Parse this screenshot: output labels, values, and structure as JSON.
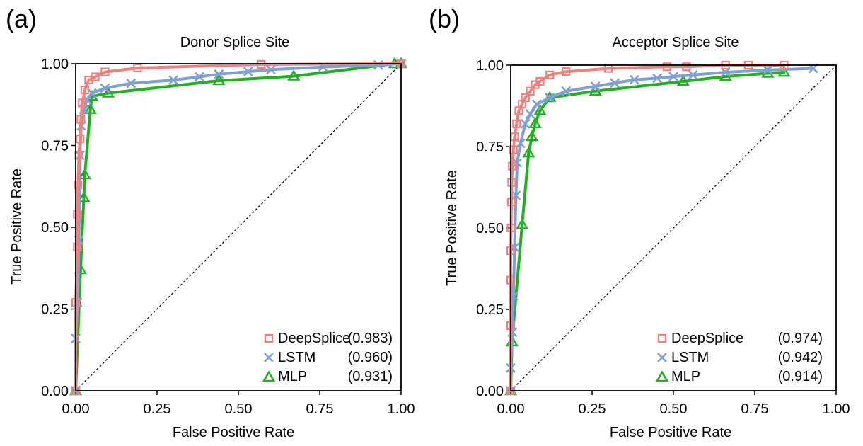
{
  "chart_data": [
    {
      "type": "line",
      "panel_label": "(a)",
      "title": "Donor Splice Site",
      "xlabel": "False Positive Rate",
      "ylabel": "True Positive Rate",
      "xlim": [
        0,
        1
      ],
      "ylim": [
        0,
        1
      ],
      "xticks": [
        "0.00",
        "0.25",
        "0.50",
        "0.75",
        "1.00"
      ],
      "yticks": [
        "0.00",
        "0.25",
        "0.50",
        "0.75",
        "1.00"
      ],
      "grid": false,
      "legend_position": "bottom-right",
      "diagonal_reference": true,
      "series": [
        {
          "name": "DeepSplice",
          "auc": "(0.983)",
          "color": "#f08080",
          "marker": "square",
          "x": [
            0.0,
            0.0,
            0.005,
            0.005,
            0.007,
            0.01,
            0.013,
            0.016,
            0.02,
            0.028,
            0.04,
            0.06,
            0.09,
            0.19,
            0.57,
            1.0
          ],
          "y": [
            0.0,
            0.27,
            0.44,
            0.54,
            0.63,
            0.72,
            0.77,
            0.83,
            0.88,
            0.92,
            0.95,
            0.96,
            0.975,
            0.987,
            0.998,
            1.0
          ]
        },
        {
          "name": "LSTM",
          "auc": "(0.960)",
          "color": "#7f9fd6",
          "marker": "x",
          "x": [
            0.0,
            0.0,
            0.006,
            0.01,
            0.013,
            0.017,
            0.025,
            0.035,
            0.05,
            0.09,
            0.17,
            0.3,
            0.38,
            0.44,
            0.53,
            0.6,
            0.76,
            0.93,
            1.0
          ],
          "y": [
            0.0,
            0.16,
            0.27,
            0.46,
            0.72,
            0.81,
            0.86,
            0.89,
            0.91,
            0.925,
            0.94,
            0.95,
            0.96,
            0.968,
            0.976,
            0.982,
            0.99,
            0.996,
            1.0
          ]
        },
        {
          "name": "MLP",
          "auc": "(0.931)",
          "color": "#22b022",
          "marker": "triangle",
          "x": [
            0.0,
            0.015,
            0.025,
            0.028,
            0.045,
            0.05,
            0.1,
            0.44,
            0.67,
            0.98,
            1.0
          ],
          "y": [
            0.0,
            0.37,
            0.59,
            0.66,
            0.86,
            0.9,
            0.91,
            0.948,
            0.962,
            1.0,
            1.0
          ]
        }
      ]
    },
    {
      "type": "line",
      "panel_label": "(b)",
      "title": "Acceptor Splice Site",
      "xlabel": "False Positive Rate",
      "ylabel": "True Positive Rate",
      "xlim": [
        0,
        1
      ],
      "ylim": [
        0,
        1
      ],
      "xticks": [
        "0.00",
        "0.25",
        "0.50",
        "0.75",
        "1.00"
      ],
      "yticks": [
        "0.00",
        "0.25",
        "0.50",
        "0.75",
        "1.00"
      ],
      "grid": false,
      "legend_position": "bottom-right",
      "diagonal_reference": true,
      "series": [
        {
          "name": "DeepSplice",
          "auc": "(0.974)",
          "color": "#f08080",
          "marker": "square",
          "x": [
            0.0,
            0.0,
            0.0,
            0.0,
            0.001,
            0.002,
            0.003,
            0.005,
            0.008,
            0.012,
            0.018,
            0.025,
            0.035,
            0.045,
            0.06,
            0.075,
            0.09,
            0.12,
            0.17,
            0.3,
            0.48,
            0.54,
            0.66,
            0.73,
            0.84
          ],
          "y": [
            0.0,
            0.2,
            0.34,
            0.43,
            0.5,
            0.58,
            0.64,
            0.69,
            0.74,
            0.78,
            0.82,
            0.86,
            0.88,
            0.9,
            0.92,
            0.94,
            0.95,
            0.97,
            0.98,
            0.99,
            0.995,
            0.995,
            1.0,
            1.0,
            1.0
          ]
        },
        {
          "name": "LSTM",
          "auc": "(0.942)",
          "color": "#7f9fd6",
          "marker": "x",
          "x": [
            0.0,
            0.0,
            0.005,
            0.008,
            0.012,
            0.016,
            0.02,
            0.03,
            0.045,
            0.06,
            0.08,
            0.12,
            0.17,
            0.26,
            0.32,
            0.38,
            0.45,
            0.5,
            0.56,
            0.66,
            0.79,
            0.93
          ],
          "y": [
            0.0,
            0.07,
            0.18,
            0.29,
            0.44,
            0.6,
            0.7,
            0.76,
            0.82,
            0.85,
            0.88,
            0.9,
            0.92,
            0.935,
            0.945,
            0.955,
            0.96,
            0.965,
            0.97,
            0.978,
            0.985,
            0.99
          ]
        },
        {
          "name": "MLP",
          "auc": "(0.914)",
          "color": "#22b022",
          "marker": "triangle",
          "x": [
            0.0,
            0.004,
            0.035,
            0.055,
            0.065,
            0.075,
            0.09,
            0.12,
            0.26,
            0.53,
            0.66,
            0.79,
            0.84
          ],
          "y": [
            0.0,
            0.15,
            0.51,
            0.73,
            0.78,
            0.82,
            0.86,
            0.9,
            0.92,
            0.95,
            0.965,
            0.975,
            0.978
          ]
        }
      ]
    }
  ]
}
